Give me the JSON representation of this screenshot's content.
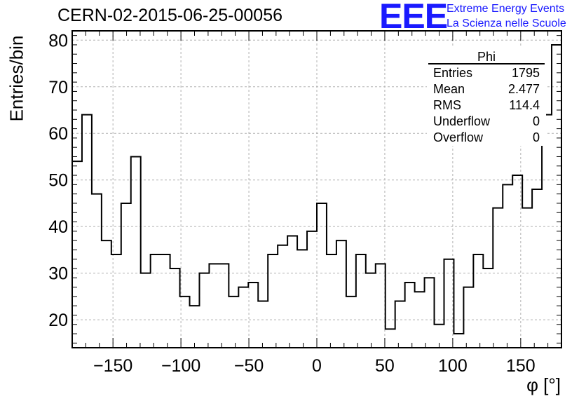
{
  "run_title": "CERN-02-2015-06-25-00056",
  "logo": {
    "mark": "EEE",
    "line1": "Extreme Energy Events",
    "line2": "La Scienza nelle Scuole",
    "color": "#1a1aff"
  },
  "stats": {
    "name": "Phi",
    "rows": [
      {
        "label": "Entries",
        "value": "1795"
      },
      {
        "label": "Mean",
        "value": "2.477"
      },
      {
        "label": "RMS",
        "value": "114.4"
      },
      {
        "label": "Underflow",
        "value": "0"
      },
      {
        "label": "Overflow",
        "value": "0"
      }
    ]
  },
  "chart_data": {
    "type": "histogram",
    "title": "CERN-02-2015-06-25-00056",
    "xlabel": "φ [°]",
    "ylabel": "Entries/bin",
    "xlim": [
      -180,
      180
    ],
    "ylim": [
      14,
      82
    ],
    "bin_width": 7.2,
    "xticks": [
      -150,
      -100,
      -50,
      0,
      50,
      100,
      150
    ],
    "yticks": [
      20,
      30,
      40,
      50,
      60,
      70,
      80
    ],
    "grid": true,
    "line_color": "#000000",
    "values": [
      54,
      64,
      47,
      37,
      34,
      45,
      55,
      30,
      34,
      34,
      31,
      25,
      23,
      30,
      32,
      32,
      25,
      27,
      28,
      24,
      34,
      36,
      38,
      35,
      39,
      45,
      34,
      37,
      25,
      34,
      30,
      32,
      18,
      24,
      28,
      26,
      29,
      19,
      33,
      17,
      27,
      34,
      31,
      44,
      49,
      51,
      44,
      48,
      64,
      79
    ]
  }
}
